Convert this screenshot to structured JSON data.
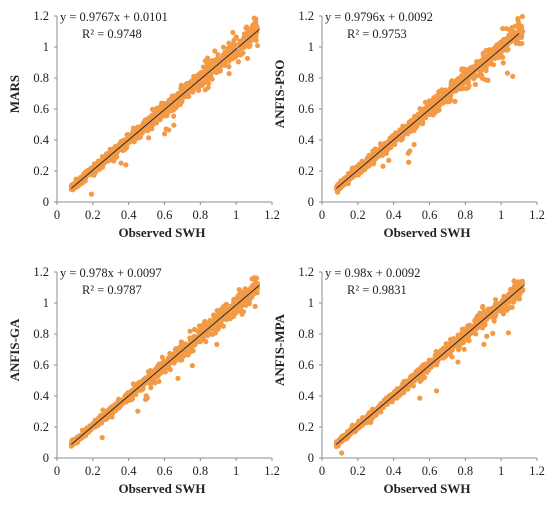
{
  "chart_data": [
    {
      "type": "scatter",
      "xlabel": "Observed SWH",
      "ylabel": "MARS",
      "xlim": [
        0,
        1.2
      ],
      "ylim": [
        0,
        1.2
      ],
      "xticks": [
        "0",
        "0.2",
        "0.4",
        "0.6",
        "0.8",
        "1",
        "1.2"
      ],
      "yticks": [
        "0",
        "0.2",
        "0.4",
        "0.6",
        "0.8",
        "1",
        "1.2"
      ],
      "grid": false,
      "point_color": "#f39a47",
      "trendline": {
        "slope": 0.9767,
        "intercept": 0.0101,
        "x_range": [
          0.08,
          1.13
        ]
      },
      "equation_text": "y = 0.9767x + 0.0101",
      "r2_text": "R² = 0.9748",
      "point_cloud": {
        "x_range": [
          0.08,
          1.12
        ],
        "approx_count": 850,
        "spread_sd": 0.032,
        "seed": 11
      },
      "sample_points": [
        {
          "x": 0.12,
          "y": 0.14
        },
        {
          "x": 0.3,
          "y": 0.3
        },
        {
          "x": 0.5,
          "y": 0.5
        },
        {
          "x": 0.7,
          "y": 0.69
        },
        {
          "x": 0.9,
          "y": 0.9
        },
        {
          "x": 1.1,
          "y": 1.05
        }
      ]
    },
    {
      "type": "scatter",
      "xlabel": "Observed SWH",
      "ylabel": "ANFIS-PSO",
      "xlim": [
        0,
        1.2
      ],
      "ylim": [
        0,
        1.2
      ],
      "xticks": [
        "0",
        "0.2",
        "0.4",
        "0.6",
        "0.8",
        "1",
        "1.2"
      ],
      "yticks": [
        "0",
        "0.2",
        "0.4",
        "0.6",
        "0.8",
        "1",
        "1.2"
      ],
      "grid": false,
      "point_color": "#f39a47",
      "trendline": {
        "slope": 0.9796,
        "intercept": 0.0092,
        "x_range": [
          0.08,
          1.1
        ]
      },
      "equation_text": "y = 0.9796x + 0.0092",
      "r2_text": "R² = 0.9753",
      "point_cloud": {
        "x_range": [
          0.08,
          1.12
        ],
        "approx_count": 850,
        "spread_sd": 0.031,
        "seed": 23
      },
      "sample_points": [
        {
          "x": 0.12,
          "y": 0.13
        },
        {
          "x": 0.3,
          "y": 0.31
        },
        {
          "x": 0.5,
          "y": 0.5
        },
        {
          "x": 0.7,
          "y": 0.7
        },
        {
          "x": 0.9,
          "y": 0.89
        },
        {
          "x": 1.08,
          "y": 1.05
        }
      ]
    },
    {
      "type": "scatter",
      "xlabel": "Observed SWH",
      "ylabel": "ANFIS-GA",
      "xlim": [
        0,
        1.2
      ],
      "ylim": [
        0,
        1.2
      ],
      "xticks": [
        "0",
        "0.2",
        "0.4",
        "0.6",
        "0.8",
        "1",
        "1.2"
      ],
      "yticks": [
        "0",
        "0.2",
        "0.4",
        "0.6",
        "0.8",
        "1",
        "1.2"
      ],
      "grid": false,
      "point_color": "#f39a47",
      "trendline": {
        "slope": 0.978,
        "intercept": 0.0097,
        "x_range": [
          0.08,
          1.13
        ]
      },
      "equation_text": "y = 0.978x + 0.0097",
      "r2_text": "R² = 0.9787",
      "point_cloud": {
        "x_range": [
          0.08,
          1.12
        ],
        "approx_count": 850,
        "spread_sd": 0.029,
        "seed": 37
      },
      "sample_points": [
        {
          "x": 0.12,
          "y": 0.13
        },
        {
          "x": 0.3,
          "y": 0.3
        },
        {
          "x": 0.5,
          "y": 0.5
        },
        {
          "x": 0.7,
          "y": 0.69
        },
        {
          "x": 0.9,
          "y": 0.89
        },
        {
          "x": 1.1,
          "y": 1.06
        }
      ]
    },
    {
      "type": "scatter",
      "xlabel": "Observed SWH",
      "ylabel": "ANFIS-MPA",
      "xlim": [
        0,
        1.2
      ],
      "ylim": [
        0,
        1.2
      ],
      "xticks": [
        "0",
        "0.2",
        "0.4",
        "0.6",
        "0.8",
        "1",
        "1.2"
      ],
      "yticks": [
        "0",
        "0.2",
        "0.4",
        "0.6",
        "0.8",
        "1",
        "1.2"
      ],
      "grid": false,
      "point_color": "#f39a47",
      "trendline": {
        "slope": 0.98,
        "intercept": 0.0092,
        "x_range": [
          0.08,
          1.13
        ]
      },
      "equation_text": "y = 0.98x + 0.0092",
      "r2_text": "R² = 0.9831",
      "point_cloud": {
        "x_range": [
          0.08,
          1.12
        ],
        "approx_count": 850,
        "spread_sd": 0.026,
        "seed": 53
      },
      "sample_points": [
        {
          "x": 0.12,
          "y": 0.13
        },
        {
          "x": 0.3,
          "y": 0.3
        },
        {
          "x": 0.5,
          "y": 0.5
        },
        {
          "x": 0.7,
          "y": 0.7
        },
        {
          "x": 0.9,
          "y": 0.89
        },
        {
          "x": 1.1,
          "y": 1.08
        }
      ]
    }
  ]
}
